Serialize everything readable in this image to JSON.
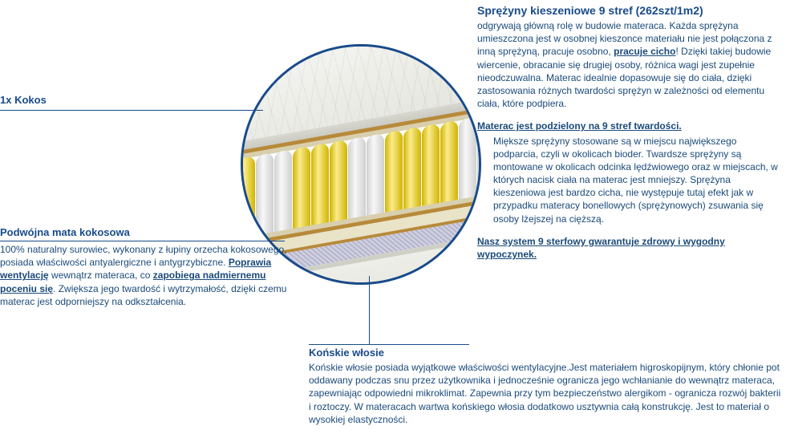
{
  "left": {
    "kokos": {
      "title": "1x Kokos"
    },
    "mata": {
      "title": "Podwójna mata kokosowa",
      "body": "100% naturalny surowiec, wykonany z łupiny orzecha kokosowego, posiada właściwości antyalergiczne i antygrzybiczne. <b class=\"u\">Poprawia wentylację</b> wewnątrz materaca, co <b class=\"u\">zapobiega nadmiernemu poceniu się</b>. Zwiększa jego twardość i wytrzymałość, dzięki czemu materac jest odporniejszy na odkształcenia."
    }
  },
  "bottom": {
    "konskie": {
      "title": "Końskie włosie",
      "body": "Końskie włosie posiada wyjątkowe właściwości wentylacyjne.Jest materiałem higroskopijnym, który chłonie pot oddawany podczas snu przez użytkownika i jednocześnie ogranicza jego wchłanianie do wewnątrz materaca, zapewniając odpowiedni mikroklimat. Zapewnia przy tym bezpieczeństwo alergikom - ogranicza rozwój bakterii i roztoczy. W materacach wartwa końskiego włosia dodatkowo usztywnia całą konstrukcję. Jest to materiał o wysokiej elastyczności."
    }
  },
  "right": {
    "sprezyny": {
      "title": "Sprężyny kieszeniowe 9 stref (262szt/1m2)",
      "p1": "odgrywają główną rolę w budowie materaca. Każda sprężyna umieszczona jest w osobnej kieszonce materiału nie jest połączona z inną sprężyną, pracuje osobno, <b class=\"u\">pracuje cicho</b>! Dzięki takiej budowie wiercenie, obracanie się drugiej osoby, różnica wagi jest zupełnie nieodczuwalna. Materac idealnie dopasowuje się do ciała, dzięki zastosowania różnych twardości sprężyn w zależności od elementu ciała, które podpiera.",
      "p2title": "Materac jest podzielony na 9 stref twardości.",
      "p2": "Miększe sprężyny stosowane są w miejscu największego podparcia, czyli w okolicach bioder. Twardsze sprężyny są montowane w okolicach odcinka lędźwiowego oraz w miejscach, w których nacisk ciała na materac jest mniejszy. Sprężyna kieszeniowa jest bardzo cicha, nie występuje tutaj efekt jak w przypadku materacy bonellowych (sprężynowych) zsuwania się osoby lżejszej na cięższą.",
      "p3": "Nasz system 9 sterfowy gwarantuje zdrowy i wygodny wypoczynek."
    }
  },
  "colors": {
    "accent": "#184b8a",
    "text": "#1a4a7a",
    "spring_yellow": "#f5d400",
    "spring_white": "#ececec"
  }
}
